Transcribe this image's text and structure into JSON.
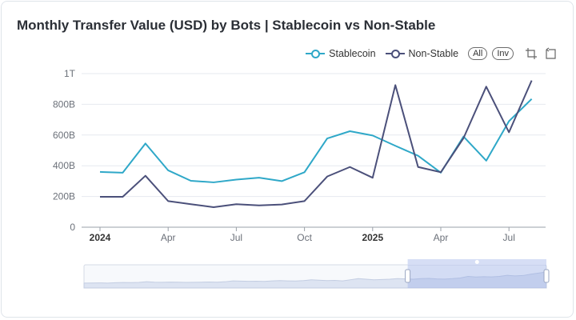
{
  "title": "Monthly Transfer Value (USD) by Bots | Stablecoin vs Non-Stable",
  "legend": {
    "stable": "Stablecoin",
    "nonstable": "Non-Stable"
  },
  "controls": {
    "all": "All",
    "inv": "Inv",
    "zoom_icon": "crop-icon",
    "reset_icon": "restore-icon"
  },
  "colors": {
    "stable": "#2fa8c8",
    "nonstable": "#4b507a",
    "grid": "#e6e9ef",
    "axis": "#8a8f98"
  },
  "chart_data": {
    "type": "line",
    "title": "Monthly Transfer Value (USD) by Bots | Stablecoin vs Non-Stable",
    "xlabel": "",
    "ylabel": "",
    "ylim": [
      0,
      1000
    ],
    "y_unit": "B",
    "y_ticks": [
      "0",
      "200B",
      "400B",
      "600B",
      "800B",
      "1T"
    ],
    "x_ticks": [
      "2024",
      "Apr",
      "Jul",
      "Oct",
      "2025",
      "Apr",
      "Jul"
    ],
    "x_tick_bold": [
      true,
      false,
      false,
      false,
      true,
      false,
      false
    ],
    "x_tick_month_index": [
      0,
      3,
      6,
      9,
      12,
      15,
      18
    ],
    "categories": [
      "2024-01",
      "2024-02",
      "2024-03",
      "2024-04",
      "2024-05",
      "2024-06",
      "2024-07",
      "2024-08",
      "2024-09",
      "2024-10",
      "2024-11",
      "2024-12",
      "2025-01",
      "2025-02",
      "2025-03",
      "2025-04",
      "2025-05",
      "2025-06",
      "2025-07",
      "2025-08"
    ],
    "series": [
      {
        "name": "Stablecoin",
        "values": [
          360,
          355,
          545,
          370,
          302,
          292,
          310,
          322,
          300,
          358,
          578,
          625,
          597,
          530,
          465,
          355,
          590,
          433,
          690,
          835
        ]
      },
      {
        "name": "Non-Stable",
        "values": [
          198,
          198,
          335,
          170,
          150,
          130,
          150,
          142,
          148,
          170,
          330,
          392,
          322,
          925,
          392,
          358,
          580,
          915,
          618,
          955
        ]
      }
    ],
    "zoom_window": [
      0.7,
      1.0
    ],
    "overview_values": [
      300,
      310,
      320,
      300,
      330,
      350,
      340,
      360,
      420,
      380,
      370,
      390,
      380,
      360,
      370,
      380,
      400,
      380,
      420,
      500,
      480,
      460,
      470,
      450,
      500,
      520,
      500,
      490,
      520,
      600,
      560,
      520,
      540,
      500,
      600,
      700,
      650,
      600,
      620,
      650,
      700,
      680,
      650,
      700,
      720,
      680,
      660,
      700,
      760,
      900,
      850,
      880,
      860,
      900,
      1000,
      950,
      980,
      1100,
      1200,
      1300
    ]
  }
}
